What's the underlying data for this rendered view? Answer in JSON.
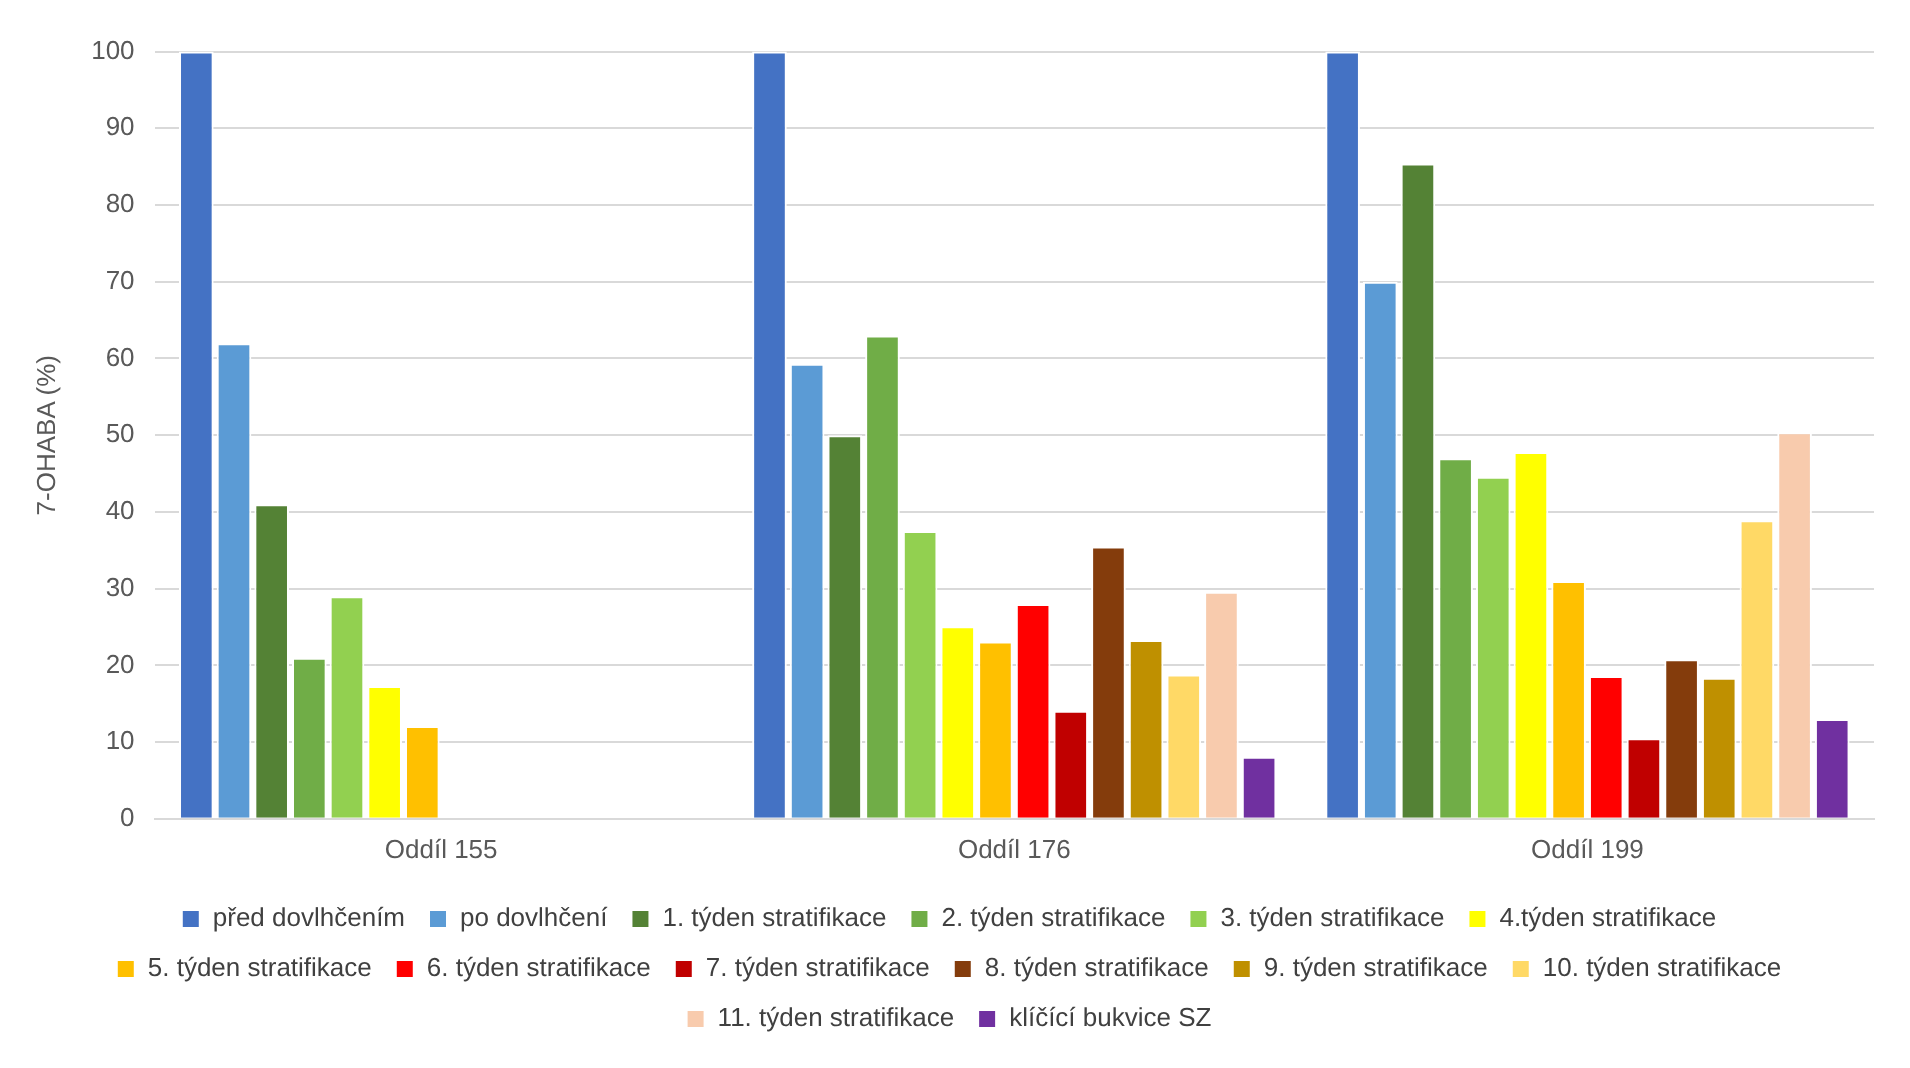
{
  "chart_data": {
    "type": "bar",
    "ylabel": "7-OHABA (%)",
    "categories": [
      "Oddíl 155",
      "Oddíl 176",
      "Oddíl 199"
    ],
    "series": [
      {
        "name": "před dovlhčením",
        "color": "#4472c4",
        "values": [
          100,
          100,
          100
        ]
      },
      {
        "name": "po dovlhčení",
        "color": "#5b9bd5",
        "values": [
          62,
          59.3,
          70
        ]
      },
      {
        "name": "1. týden stratifikace",
        "color": "#548235",
        "values": [
          41,
          50,
          85.4
        ]
      },
      {
        "name": "2. týden stratifikace",
        "color": "#70ad47",
        "values": [
          21,
          63,
          47
        ]
      },
      {
        "name": "3. týden stratifikace",
        "color": "#92d050",
        "values": [
          29,
          37.5,
          44.6
        ]
      },
      {
        "name": "4.týden stratifikace",
        "color": "#ffff00",
        "values": [
          17.3,
          25.1,
          47.8
        ]
      },
      {
        "name": "5. týden stratifikace",
        "color": "#ffc000",
        "values": [
          12.1,
          23.1,
          31
        ]
      },
      {
        "name": "6. týden stratifikace",
        "color": "#ff0000",
        "values": [
          null,
          28,
          18.6
        ]
      },
      {
        "name": "7. týden stratifikace",
        "color": "#c00000",
        "values": [
          null,
          14.1,
          10.5
        ]
      },
      {
        "name": "8. týden stratifikace",
        "color": "#843c0c",
        "values": [
          null,
          35.5,
          20.8
        ]
      },
      {
        "name": "9. týden stratifikace",
        "color": "#bf9000",
        "values": [
          null,
          23.3,
          18.4
        ]
      },
      {
        "name": "10. týden stratifikace",
        "color": "#ffd966",
        "values": [
          null,
          18.8,
          38.9
        ]
      },
      {
        "name": "11. týden stratifikace",
        "color": "#f8cbad",
        "values": [
          null,
          29.6,
          50.4
        ]
      },
      {
        "name": "klíčící bukvice SZ",
        "color": "#7030a0",
        "values": [
          null,
          8.1,
          13
        ]
      }
    ],
    "ylim": [
      0,
      100
    ],
    "yticks": [
      0,
      10,
      20,
      30,
      40,
      50,
      60,
      70,
      80,
      90,
      100
    ],
    "grid": "y",
    "legend": "bottom"
  }
}
